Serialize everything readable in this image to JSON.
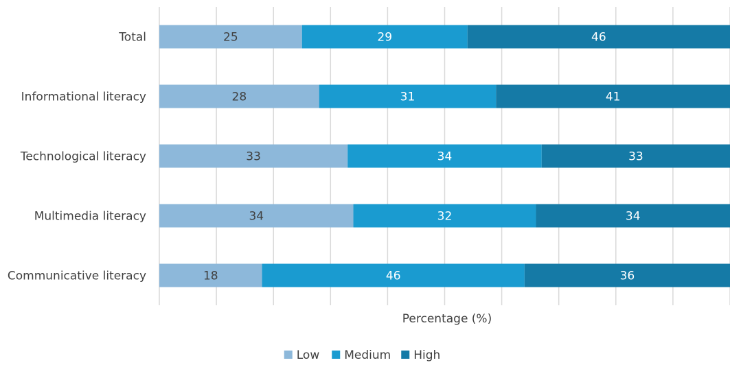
{
  "chart_data": {
    "type": "bar",
    "orientation": "horizontal",
    "stacked": true,
    "categories": [
      "Total",
      "Informational literacy",
      "Technological literacy",
      "Multimedia literacy",
      "Communicative literacy"
    ],
    "series": [
      {
        "name": "Low",
        "values": [
          25,
          28,
          33,
          34,
          18
        ],
        "color": "#8db8da",
        "label_color": "#404040"
      },
      {
        "name": "Medium",
        "values": [
          29,
          31,
          34,
          32,
          46
        ],
        "color": "#1a9bd0",
        "label_color": "#ffffff"
      },
      {
        "name": "High",
        "values": [
          46,
          41,
          33,
          34,
          36
        ],
        "color": "#157aa6",
        "label_color": "#ffffff"
      }
    ],
    "xlabel": "Percentage (%)",
    "ylabel": "",
    "xlim": [
      0,
      100
    ],
    "grid": true,
    "legend_position": "bottom"
  }
}
